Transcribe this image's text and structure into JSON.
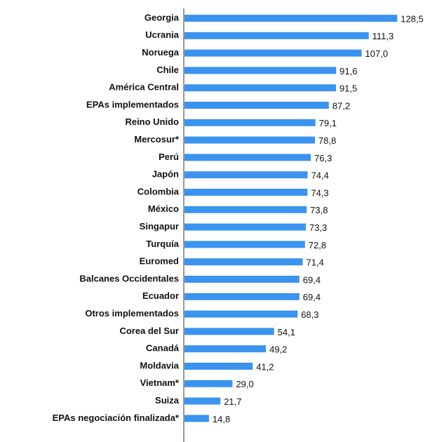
{
  "chart_data": {
    "type": "bar",
    "orientation": "horizontal",
    "color": "#3a93ee",
    "categories": [
      "Georgia",
      "Ucrania",
      "Noruega",
      "Chile",
      "América Central",
      "EPAs implementados",
      "Reino Unido",
      "Mercosur*",
      "Perú",
      "Japón",
      "Colombia",
      "México",
      "Singapur",
      "Turquía",
      "Euromed",
      "Balcanes Occidentales",
      "Ecuador",
      "Otros implementados",
      "Corea del Sur",
      "Canadá",
      "Moldavia",
      "Vietnam*",
      "Suiza",
      "EPAs negociación finalizada*"
    ],
    "values": [
      128.5,
      111.3,
      107.0,
      91.6,
      91.5,
      87.2,
      79.1,
      78.8,
      76.3,
      74.4,
      74.3,
      73.8,
      73.3,
      72.8,
      71.4,
      69.4,
      69.4,
      68.3,
      54.1,
      49.2,
      41.2,
      29.0,
      21.7,
      14.8
    ],
    "value_labels": [
      "128,5",
      "111,3",
      "107,0",
      "91,6",
      "91,5",
      "87,2",
      "79,1",
      "78,8",
      "76,3",
      "74,4",
      "74,3",
      "73,8",
      "73,3",
      "72,8",
      "71,4",
      "69,4",
      "69,4",
      "68,3",
      "54,1",
      "49,2",
      "41,2",
      "29,0",
      "21,7",
      "14,8"
    ]
  }
}
